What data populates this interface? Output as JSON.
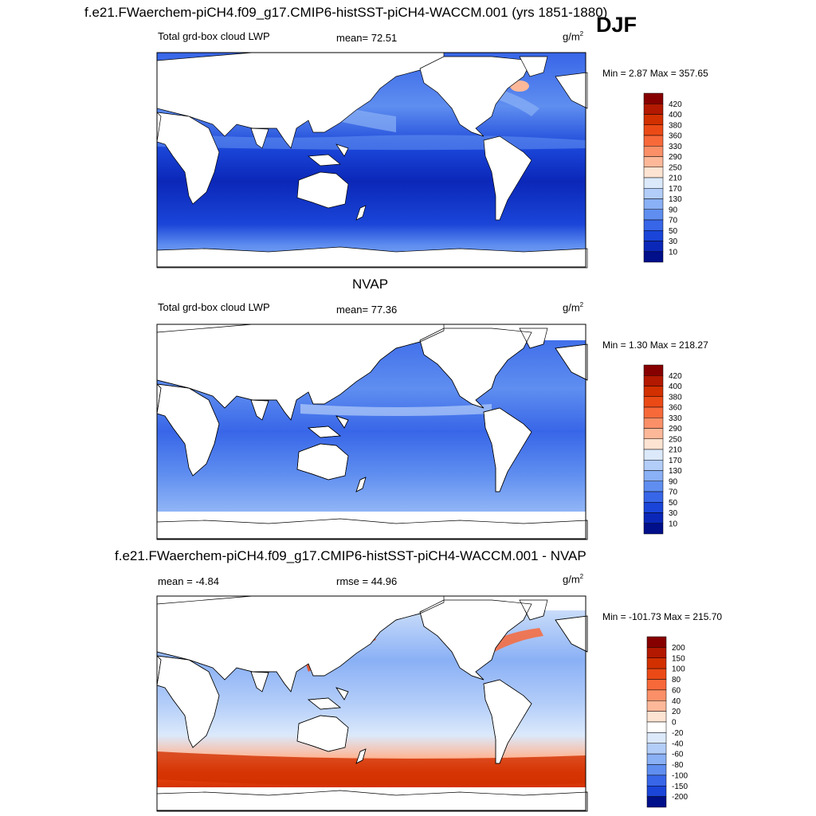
{
  "header": {
    "main_title": "f.e21.FWaerchem-piCH4.f09_g17.CMIP6-histSST-piCH4-WACCM.001 (yrs 1851-1880)",
    "season": "DJF"
  },
  "panels": [
    {
      "id": "model",
      "title": "",
      "variable": "Total grd-box cloud LWP",
      "stat_text": "mean=  72.51",
      "units_base": "g/m",
      "units_exp": "2",
      "minmax": "Min =   2.87 Max = 357.65",
      "colorbar": {
        "labels": [
          "420",
          "400",
          "380",
          "360",
          "330",
          "290",
          "250",
          "210",
          "170",
          "130",
          "90",
          "70",
          "50",
          "30",
          "10"
        ],
        "colors": [
          "#870000",
          "#b31800",
          "#d23000",
          "#eb4a16",
          "#f8693a",
          "#fb9068",
          "#fdb899",
          "#fde3d2",
          "#dbe9fb",
          "#b3cdf9",
          "#8ab0f5",
          "#5f8ef0",
          "#3866e8",
          "#1a45d8",
          "#0b27b8",
          "#000f8a"
        ]
      }
    },
    {
      "id": "obs",
      "title": "NVAP",
      "variable": "Total grd-box cloud LWP",
      "stat_text": "mean=  77.36",
      "units_base": "g/m",
      "units_exp": "2",
      "minmax": "Min =   1.30 Max = 218.27",
      "colorbar": {
        "labels": [
          "420",
          "400",
          "380",
          "360",
          "330",
          "290",
          "250",
          "210",
          "170",
          "130",
          "90",
          "70",
          "50",
          "30",
          "10"
        ],
        "colors": [
          "#870000",
          "#b31800",
          "#d23000",
          "#eb4a16",
          "#f8693a",
          "#fb9068",
          "#fdb899",
          "#fde3d2",
          "#dbe9fb",
          "#b3cdf9",
          "#8ab0f5",
          "#5f8ef0",
          "#3866e8",
          "#1a45d8",
          "#0b27b8",
          "#000f8a"
        ]
      }
    },
    {
      "id": "diff",
      "title": "f.e21.FWaerchem-piCH4.f09_g17.CMIP6-histSST-piCH4-WACCM.001 - NVAP",
      "variable": "",
      "stat_text": "mean =  -4.84",
      "rmse_text": "rmse =  44.96",
      "units_base": "g/m",
      "units_exp": "2",
      "minmax": "Min = -101.73 Max = 215.70",
      "colorbar": {
        "labels": [
          "200",
          "150",
          "100",
          "80",
          "60",
          "40",
          "20",
          "0",
          "-20",
          "-40",
          "-60",
          "-80",
          "-100",
          "-150",
          "-200"
        ],
        "colors": [
          "#870000",
          "#b31800",
          "#d23000",
          "#eb4a16",
          "#f8693a",
          "#fb9068",
          "#fdb899",
          "#fde3d2",
          "#ffffff",
          "#dbe9fb",
          "#b3cdf9",
          "#8ab0f5",
          "#5f8ef0",
          "#3866e8",
          "#1a45d8",
          "#000f8a"
        ]
      }
    }
  ]
}
